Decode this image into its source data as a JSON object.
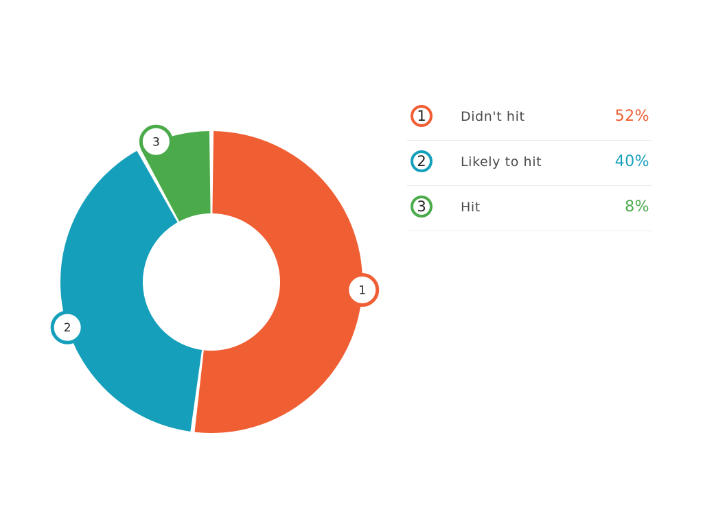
{
  "chart_data": {
    "type": "pie",
    "style": "donut",
    "slices": [
      {
        "marker": "1",
        "label": "Didn't hit",
        "value": 52,
        "display": "52%",
        "color": "#f05e33"
      },
      {
        "marker": "2",
        "label": "Likely to hit",
        "value": 40,
        "display": "40%",
        "color": "#159fbb"
      },
      {
        "marker": "3",
        "label": "Hit",
        "value": 8,
        "display": "8%",
        "color": "#4bab4b"
      }
    ],
    "legend_placement": "right"
  }
}
